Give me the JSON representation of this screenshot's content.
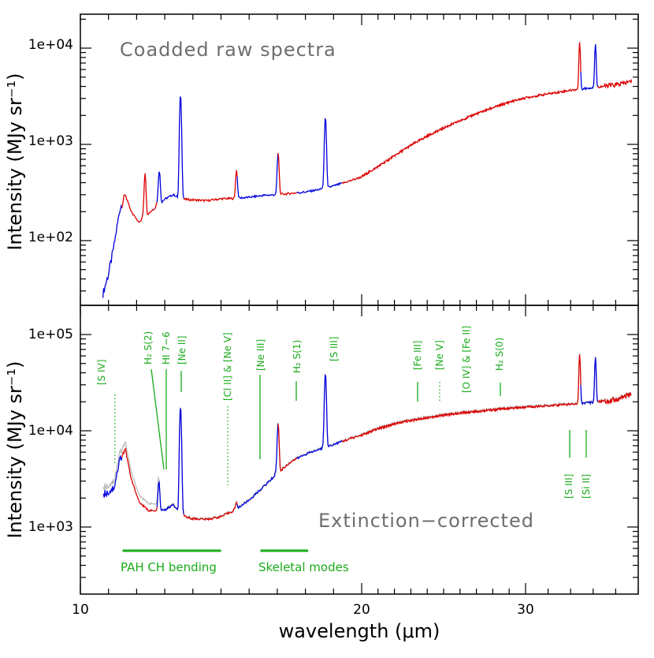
{
  "colors": {
    "raw_segment_a": "#0000dd",
    "raw_segment_b": "#dd0000",
    "uncorrected_overlay": "#b8b8b8",
    "annotation": "#1aab1a",
    "panel_title": "#6e6e6e",
    "axes": "#000000"
  },
  "xaxis": {
    "label": "wavelength (μm)",
    "ticks": [
      "10",
      "20",
      "30"
    ]
  },
  "chart_data": [
    {
      "type": "line",
      "title": "Coadded raw spectra",
      "ylabel": "Intensity (MJy sr⁻¹)",
      "yscale": "log",
      "xlim": [
        10,
        35
      ],
      "ylim": [
        20,
        20000
      ],
      "yticks": [
        "1e+02",
        "1e+03",
        "1e+04"
      ],
      "series": [
        {
          "x": [
            10.8,
            11.0,
            11.2,
            11.4,
            11.6,
            11.8,
            12.1,
            12.4,
            12.7,
            13.0,
            13.3,
            13.6,
            14.0,
            14.5,
            15.0,
            15.5,
            16.0,
            16.5,
            17.0,
            17.5,
            18.0,
            18.5,
            19.0,
            19.5,
            20.0,
            21.0,
            22.0,
            23.0,
            24.0,
            25.0,
            26.0,
            27.0,
            28.0,
            29.0,
            30.0,
            31.0,
            32.0,
            33.0,
            34.0,
            34.7
          ],
          "y": [
            28,
            45,
            90,
            210,
            300,
            200,
            155,
            190,
            225,
            270,
            300,
            270,
            265,
            260,
            272,
            275,
            282,
            295,
            300,
            310,
            320,
            340,
            370,
            410,
            460,
            590,
            760,
            980,
            1220,
            1480,
            1760,
            2080,
            2400,
            2750,
            3050,
            3350,
            3650,
            3900,
            4150,
            4500
          ]
        }
      ],
      "spikes": [
        {
          "x": 12.3,
          "y": 500
        },
        {
          "x": 12.8,
          "y": 520
        },
        {
          "x": 12.81,
          "y": 520
        },
        {
          "x": 13.56,
          "y": 3300
        },
        {
          "x": 15.55,
          "y": 540
        },
        {
          "x": 17.03,
          "y": 820
        },
        {
          "x": 18.71,
          "y": 1950
        },
        {
          "x": 32.4,
          "y": 11500
        },
        {
          "x": 33.1,
          "y": 11000
        }
      ]
    },
    {
      "type": "line",
      "title": "Extinction−corrected",
      "ylabel": "Intensity (MJy sr⁻¹)",
      "yscale": "log",
      "xlim": [
        10,
        35
      ],
      "ylim": [
        250,
        200000
      ],
      "yticks": [
        "1e+03",
        "1e+04",
        "1e+05"
      ],
      "series": [
        {
          "x": [
            10.8,
            11.0,
            11.2,
            11.4,
            11.6,
            11.8,
            12.1,
            12.4,
            12.7,
            13.0,
            13.3,
            13.6,
            14.0,
            14.5,
            15.0,
            15.5,
            16.0,
            16.5,
            17.0,
            17.5,
            18.0,
            18.5,
            19.0,
            19.5,
            20.0,
            21.0,
            22.0,
            23.0,
            24.0,
            25.0,
            26.0,
            27.0,
            28.0,
            29.0,
            30.0,
            31.0,
            32.0,
            33.0,
            34.0,
            34.7
          ],
          "y": [
            2200,
            2300,
            2600,
            5000,
            6500,
            3200,
            1800,
            1500,
            1450,
            1500,
            1700,
            1300,
            1220,
            1200,
            1280,
            1500,
            1900,
            2600,
            3600,
            4800,
            5700,
            6400,
            7200,
            8100,
            9000,
            10500,
            11800,
            12800,
            13700,
            14500,
            15200,
            15900,
            16500,
            17000,
            17600,
            18200,
            18900,
            19700,
            21000,
            24000
          ]
        }
      ],
      "spikes": [
        {
          "x": 12.79,
          "y": 3000
        },
        {
          "x": 13.56,
          "y": 18000
        },
        {
          "x": 15.55,
          "y": 1800
        },
        {
          "x": 17.03,
          "y": 12000
        },
        {
          "x": 18.71,
          "y": 40000
        },
        {
          "x": 32.4,
          "y": 62000
        },
        {
          "x": 33.1,
          "y": 58000
        }
      ],
      "line_ids": [
        {
          "label": "[S IV]",
          "x": 10.5,
          "style": "dotted"
        },
        {
          "label": "H₂ S(2)",
          "x": 12.28,
          "style": "solid"
        },
        {
          "label": "HI 7−6",
          "x": 12.37,
          "style": "solid"
        },
        {
          "label": "[Ne II]",
          "x": 12.81,
          "style": "solid"
        },
        {
          "label": "[Cl II] & [Ne V]",
          "x": 14.35,
          "style": "dotted"
        },
        {
          "label": "[Ne III]",
          "x": 15.55,
          "style": "solid"
        },
        {
          "label": "H₂ S(1)",
          "x": 17.03,
          "style": "solid"
        },
        {
          "label": "[S III]",
          "x": 18.71,
          "style": "solid"
        },
        {
          "label": "[Fe III]",
          "x": 22.93,
          "style": "solid"
        },
        {
          "label": "[Ne V]",
          "x": 24.32,
          "style": "dotted"
        },
        {
          "label": "[O IV] & [Fe II]",
          "x": 25.9,
          "style": "solid"
        },
        {
          "label": "H₂ S(0)",
          "x": 28.22,
          "style": "solid"
        },
        {
          "label": "[S III]",
          "x": 33.48,
          "style": "solid"
        },
        {
          "label": "[Si II]",
          "x": 34.82,
          "style": "solid"
        }
      ],
      "bands": [
        {
          "label": "PAH CH bending",
          "x": [
            11.5,
            15.0
          ]
        },
        {
          "label": "Skeletal modes",
          "x": [
            16.4,
            18.1
          ]
        }
      ]
    }
  ]
}
